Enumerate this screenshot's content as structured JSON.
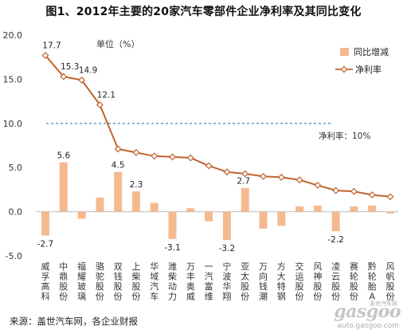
{
  "chart_data": {
    "type": "bar+line",
    "title": "图1、2012年主要的20家汽车零部件企业净利率及其同比变化",
    "unit_label": "单位（%）",
    "ylim": [
      -5.0,
      20.0
    ],
    "yticks": [
      "20.0",
      "15.0",
      "10.0",
      "5.0",
      "0.0",
      "-5.0"
    ],
    "ytick_values": [
      20,
      15,
      10,
      5,
      0,
      -5
    ],
    "categories": [
      "威孚高科",
      "中鼎股份",
      "福耀玻璃",
      "骆驼股份",
      "双钱股份",
      "上柴股份",
      "华域汽车",
      "潍柴动力",
      "万丰奥威",
      "一汽富维",
      "宁波华翔",
      "亚太股份",
      "万向钱潮",
      "方大特钢",
      "交运股份",
      "风神股份",
      "凌云股份",
      "赛轮股份",
      "黔轮胎A",
      "风帆股份"
    ],
    "x_label_chars": [
      [
        "威",
        "孚",
        "高",
        "科"
      ],
      [
        "中",
        "鼎",
        "股",
        "份"
      ],
      [
        "福",
        "耀",
        "玻",
        "璃"
      ],
      [
        "骆",
        "驼",
        "股",
        "份"
      ],
      [
        "双",
        "钱",
        "股",
        "份"
      ],
      [
        "上",
        "柴",
        "股",
        "份"
      ],
      [
        "华",
        "域",
        "汽",
        "车"
      ],
      [
        "潍",
        "柴",
        "动",
        "力"
      ],
      [
        "万",
        "丰",
        "奥",
        "威"
      ],
      [
        "一",
        "汽",
        "富",
        "维"
      ],
      [
        "宁",
        "波",
        "华",
        "翔"
      ],
      [
        "亚",
        "太",
        "股",
        "份"
      ],
      [
        "万",
        "向",
        "钱",
        "潮"
      ],
      [
        "方",
        "大",
        "特",
        "钢"
      ],
      [
        "交",
        "运",
        "股",
        "份"
      ],
      [
        "风",
        "神",
        "股",
        "份"
      ],
      [
        "凌",
        "云",
        "股",
        "份"
      ],
      [
        "赛",
        "轮",
        "股",
        "份"
      ],
      [
        "黔",
        "轮",
        "胎",
        "A"
      ],
      [
        "风",
        "帆",
        "股",
        "份"
      ]
    ],
    "series": [
      {
        "name": "同比增减",
        "type": "bar",
        "color": "#f5b98f",
        "values": [
          -2.7,
          5.6,
          -0.8,
          1.6,
          4.5,
          2.3,
          1.0,
          -3.1,
          0.4,
          -1.1,
          -3.2,
          2.7,
          -1.9,
          -1.6,
          0.6,
          0.7,
          -2.2,
          0.6,
          0.7,
          -0.2
        ]
      },
      {
        "name": "净利率",
        "type": "line",
        "color": "#c0622c",
        "values": [
          17.7,
          15.3,
          14.9,
          12.1,
          7.1,
          6.7,
          6.3,
          6.2,
          6.1,
          5.2,
          4.5,
          4.3,
          4.0,
          3.9,
          3.6,
          3.0,
          2.4,
          2.3,
          1.9,
          1.7
        ]
      }
    ],
    "bar_data_labels": [
      {
        "index": 0,
        "text": "-2.7"
      },
      {
        "index": 1,
        "text": "5.6"
      },
      {
        "index": 4,
        "text": "4.5"
      },
      {
        "index": 5,
        "text": "2.3"
      },
      {
        "index": 7,
        "text": "-3.1"
      },
      {
        "index": 10,
        "text": "-3.2"
      },
      {
        "index": 11,
        "text": "2.7"
      },
      {
        "index": 16,
        "text": "-2.2"
      }
    ],
    "line_data_labels": [
      {
        "index": 0,
        "text": "17.7"
      },
      {
        "index": 1,
        "text": "15.3"
      },
      {
        "index": 2,
        "text": "14.9"
      },
      {
        "index": 3,
        "text": "12.1"
      }
    ],
    "reference_line": {
      "value": 10.0,
      "label": "净利率：10%",
      "color": "#5b8fd1",
      "style": "dashed"
    },
    "legend": {
      "placement": "top-right",
      "items": [
        "同比增减",
        "净利率"
      ]
    },
    "grid": false
  },
  "source": "来源：盖世汽车网，各企业财报",
  "watermark": {
    "logo_text": "gasgoo",
    "url_text": "auto.gasgoo.com",
    "cn_text": "盖世汽车网"
  }
}
